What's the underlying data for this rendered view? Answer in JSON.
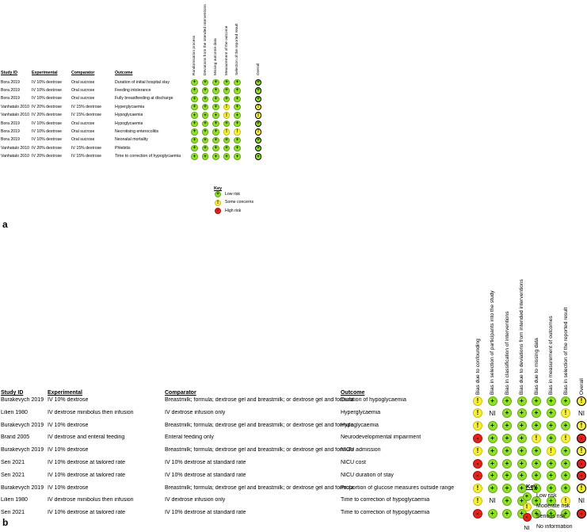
{
  "panel_a": {
    "letter": "a",
    "headers": {
      "study": "Study ID",
      "experimental": "Experimental",
      "comparator": "Comparator",
      "outcome": "Outcome"
    },
    "domains": [
      "Randomisation process",
      "Deviations from the intended interventions",
      "Missing outcome data",
      "Measurement of the outcome",
      "Selection of the reported result",
      "Overall"
    ],
    "rows": [
      {
        "study": "Bora 2019",
        "experimental": "IV 10% dextrose",
        "comparator": "Oral sucrose",
        "outcome": "Duration of initial hospital stay",
        "j": [
          "L",
          "L",
          "L",
          "L",
          "L",
          "L"
        ]
      },
      {
        "study": "Bora 2019",
        "experimental": "IV 10% dextrose",
        "comparator": "Oral sucrose",
        "outcome": "Feeding intolerance",
        "j": [
          "L",
          "L",
          "L",
          "L",
          "L",
          "L"
        ]
      },
      {
        "study": "Bora 2019",
        "experimental": "IV 10% dextrose",
        "comparator": "Oral sucrose",
        "outcome": "Fully breastfeeding at discharge",
        "j": [
          "L",
          "L",
          "L",
          "L",
          "L",
          "L"
        ]
      },
      {
        "study": "Vanhatalo 2010",
        "experimental": "IV 20% dextrose",
        "comparator": "IV 15% dextrose",
        "outcome": "Hyperglycaemia",
        "j": [
          "L",
          "L",
          "L",
          "S",
          "L",
          "S"
        ]
      },
      {
        "study": "Vanhatalo 2010",
        "experimental": "IV 20% dextrose",
        "comparator": "IV 15% dextrose",
        "outcome": "Hypoglycaemia",
        "j": [
          "L",
          "L",
          "L",
          "S",
          "L",
          "S"
        ]
      },
      {
        "study": "Bora 2019",
        "experimental": "IV 10% dextrose",
        "comparator": "Oral sucrose",
        "outcome": "Hypoglycaemia",
        "j": [
          "L",
          "L",
          "L",
          "L",
          "L",
          "L"
        ]
      },
      {
        "study": "Bora 2019",
        "experimental": "IV 10% dextrose",
        "comparator": "Oral sucrose",
        "outcome": "Necrotising enterocolitis",
        "j": [
          "L",
          "L",
          "L",
          "S",
          "S",
          "S"
        ]
      },
      {
        "study": "Bora 2019",
        "experimental": "IV 10% dextrose",
        "comparator": "Oral sucrose",
        "outcome": "Neonatal mortality",
        "j": [
          "L",
          "L",
          "L",
          "L",
          "L",
          "L"
        ]
      },
      {
        "study": "Vanhatalo 2010",
        "experimental": "IV 20% dextrose",
        "comparator": "IV 15% dextrose",
        "outcome": "Phlebitis",
        "j": [
          "L",
          "L",
          "L",
          "L",
          "L",
          "L"
        ]
      },
      {
        "study": "Vanhatalo 2010",
        "experimental": "IV 20% dextrose",
        "comparator": "IV 15% dextrose",
        "outcome": "Time to correction of hypoglycaemia",
        "j": [
          "L",
          "L",
          "L",
          "L",
          "L",
          "L"
        ]
      }
    ],
    "key": {
      "title": "Key",
      "items": [
        {
          "sym": "+",
          "label": "Low risk"
        },
        {
          "sym": "!",
          "label": "Some concerns"
        },
        {
          "sym": "-",
          "label": "High risk"
        }
      ]
    }
  },
  "panel_b": {
    "letter": "b",
    "headers": {
      "study": "Study ID",
      "experimental": "Experimental",
      "comparator": "Comparator",
      "outcome": "Outcome"
    },
    "domains": [
      "Bias due to confounding",
      "Bias in selection of participants into the study",
      "Bias in classification of interventions",
      "Bias due to deviations from intended interventions",
      "Bias due to missing data",
      "Bias in measurement of outcomes",
      "Bias in selection of the reported result",
      "Overall"
    ],
    "rows": [
      {
        "study": "Burakevych 2019",
        "experimental": "IV 10% dextrose",
        "comparator": "Breastmilk; formula; dextrose gel and breastmilk; or dextrose gel and formula",
        "outcome": "Duration of hypoglycaemia",
        "j": [
          "M",
          "L",
          "L",
          "L",
          "L",
          "L",
          "L",
          "M"
        ]
      },
      {
        "study": "Lilien 1980",
        "experimental": "IV dextrose minibolus then infusion",
        "comparator": "IV dextrose infusion only",
        "outcome": "Hyperglycaemia",
        "j": [
          "M",
          "NI",
          "L",
          "L",
          "L",
          "L",
          "M",
          "NI"
        ]
      },
      {
        "study": "Burakevych 2019",
        "experimental": "IV 10% dextrose",
        "comparator": "Breastmilk; formula; dextrose gel and breastmilk; or dextrose gel and formula",
        "outcome": "Hypoglycaemia",
        "j": [
          "M",
          "L",
          "L",
          "L",
          "L",
          "L",
          "L",
          "M"
        ]
      },
      {
        "study": "Brand 2005",
        "experimental": "IV dextrose and enteral feeding",
        "comparator": "Enteral feeding only",
        "outcome": "Neurodevelopmental impairment",
        "j": [
          "H",
          "L",
          "L",
          "L",
          "M",
          "L",
          "M",
          "H"
        ]
      },
      {
        "study": "Burakevych 2019",
        "experimental": "IV 10% dextrose",
        "comparator": "Breastmilk; formula; dextrose gel and breastmilk; or dextrose gel and formula",
        "outcome": "NICU admission",
        "j": [
          "M",
          "L",
          "L",
          "L",
          "L",
          "M",
          "L",
          "M"
        ]
      },
      {
        "study": "Sen 2021",
        "experimental": "IV 10% dextrose at tailored rate",
        "comparator": "IV 10% dextrose at standard rate",
        "outcome": "NICU cost",
        "j": [
          "H",
          "L",
          "L",
          "L",
          "L",
          "L",
          "L",
          "H"
        ]
      },
      {
        "study": "Sen 2021",
        "experimental": "IV 10% dextrose at tailored rate",
        "comparator": "IV 10% dextrose at standard rate",
        "outcome": "NICU duration of stay",
        "j": [
          "H",
          "L",
          "L",
          "L",
          "L",
          "L",
          "L",
          "H"
        ]
      },
      {
        "study": "Burakevych 2019",
        "experimental": "IV 10% dextrose",
        "comparator": "Breastmilk; formula; dextrose gel and breastmilk; or dextrose gel and formula",
        "outcome": "Proportion of glucose measures outside range",
        "j": [
          "M",
          "L",
          "L",
          "L",
          "L",
          "L",
          "L",
          "M"
        ]
      },
      {
        "study": "Lilien 1980",
        "experimental": "IV dextrose minibolus then infusion",
        "comparator": "IV dextrose infusion only",
        "outcome": "Time to correction of hypoglycaemia",
        "j": [
          "M",
          "NI",
          "L",
          "L",
          "L",
          "L",
          "M",
          "NI"
        ]
      },
      {
        "study": "Sen 2021",
        "experimental": "IV 10% dextrose at tailored rate",
        "comparator": "IV 10% dextrose at standard rate",
        "outcome": "Time to correction of hypoglycaemia",
        "j": [
          "H",
          "L",
          "L",
          "L",
          "L",
          "L",
          "L",
          "H"
        ]
      }
    ],
    "key": {
      "title": "Key",
      "items": [
        {
          "sym": "+",
          "label": "Low risk"
        },
        {
          "sym": "!",
          "label": "Moderate risk"
        },
        {
          "sym": "-",
          "label": "Serious risk"
        },
        {
          "sym": "NI",
          "label": "No information"
        }
      ]
    }
  },
  "colors": {
    "low": "#8ee02a",
    "some": "#f7f03a",
    "high": "#e0231d"
  }
}
